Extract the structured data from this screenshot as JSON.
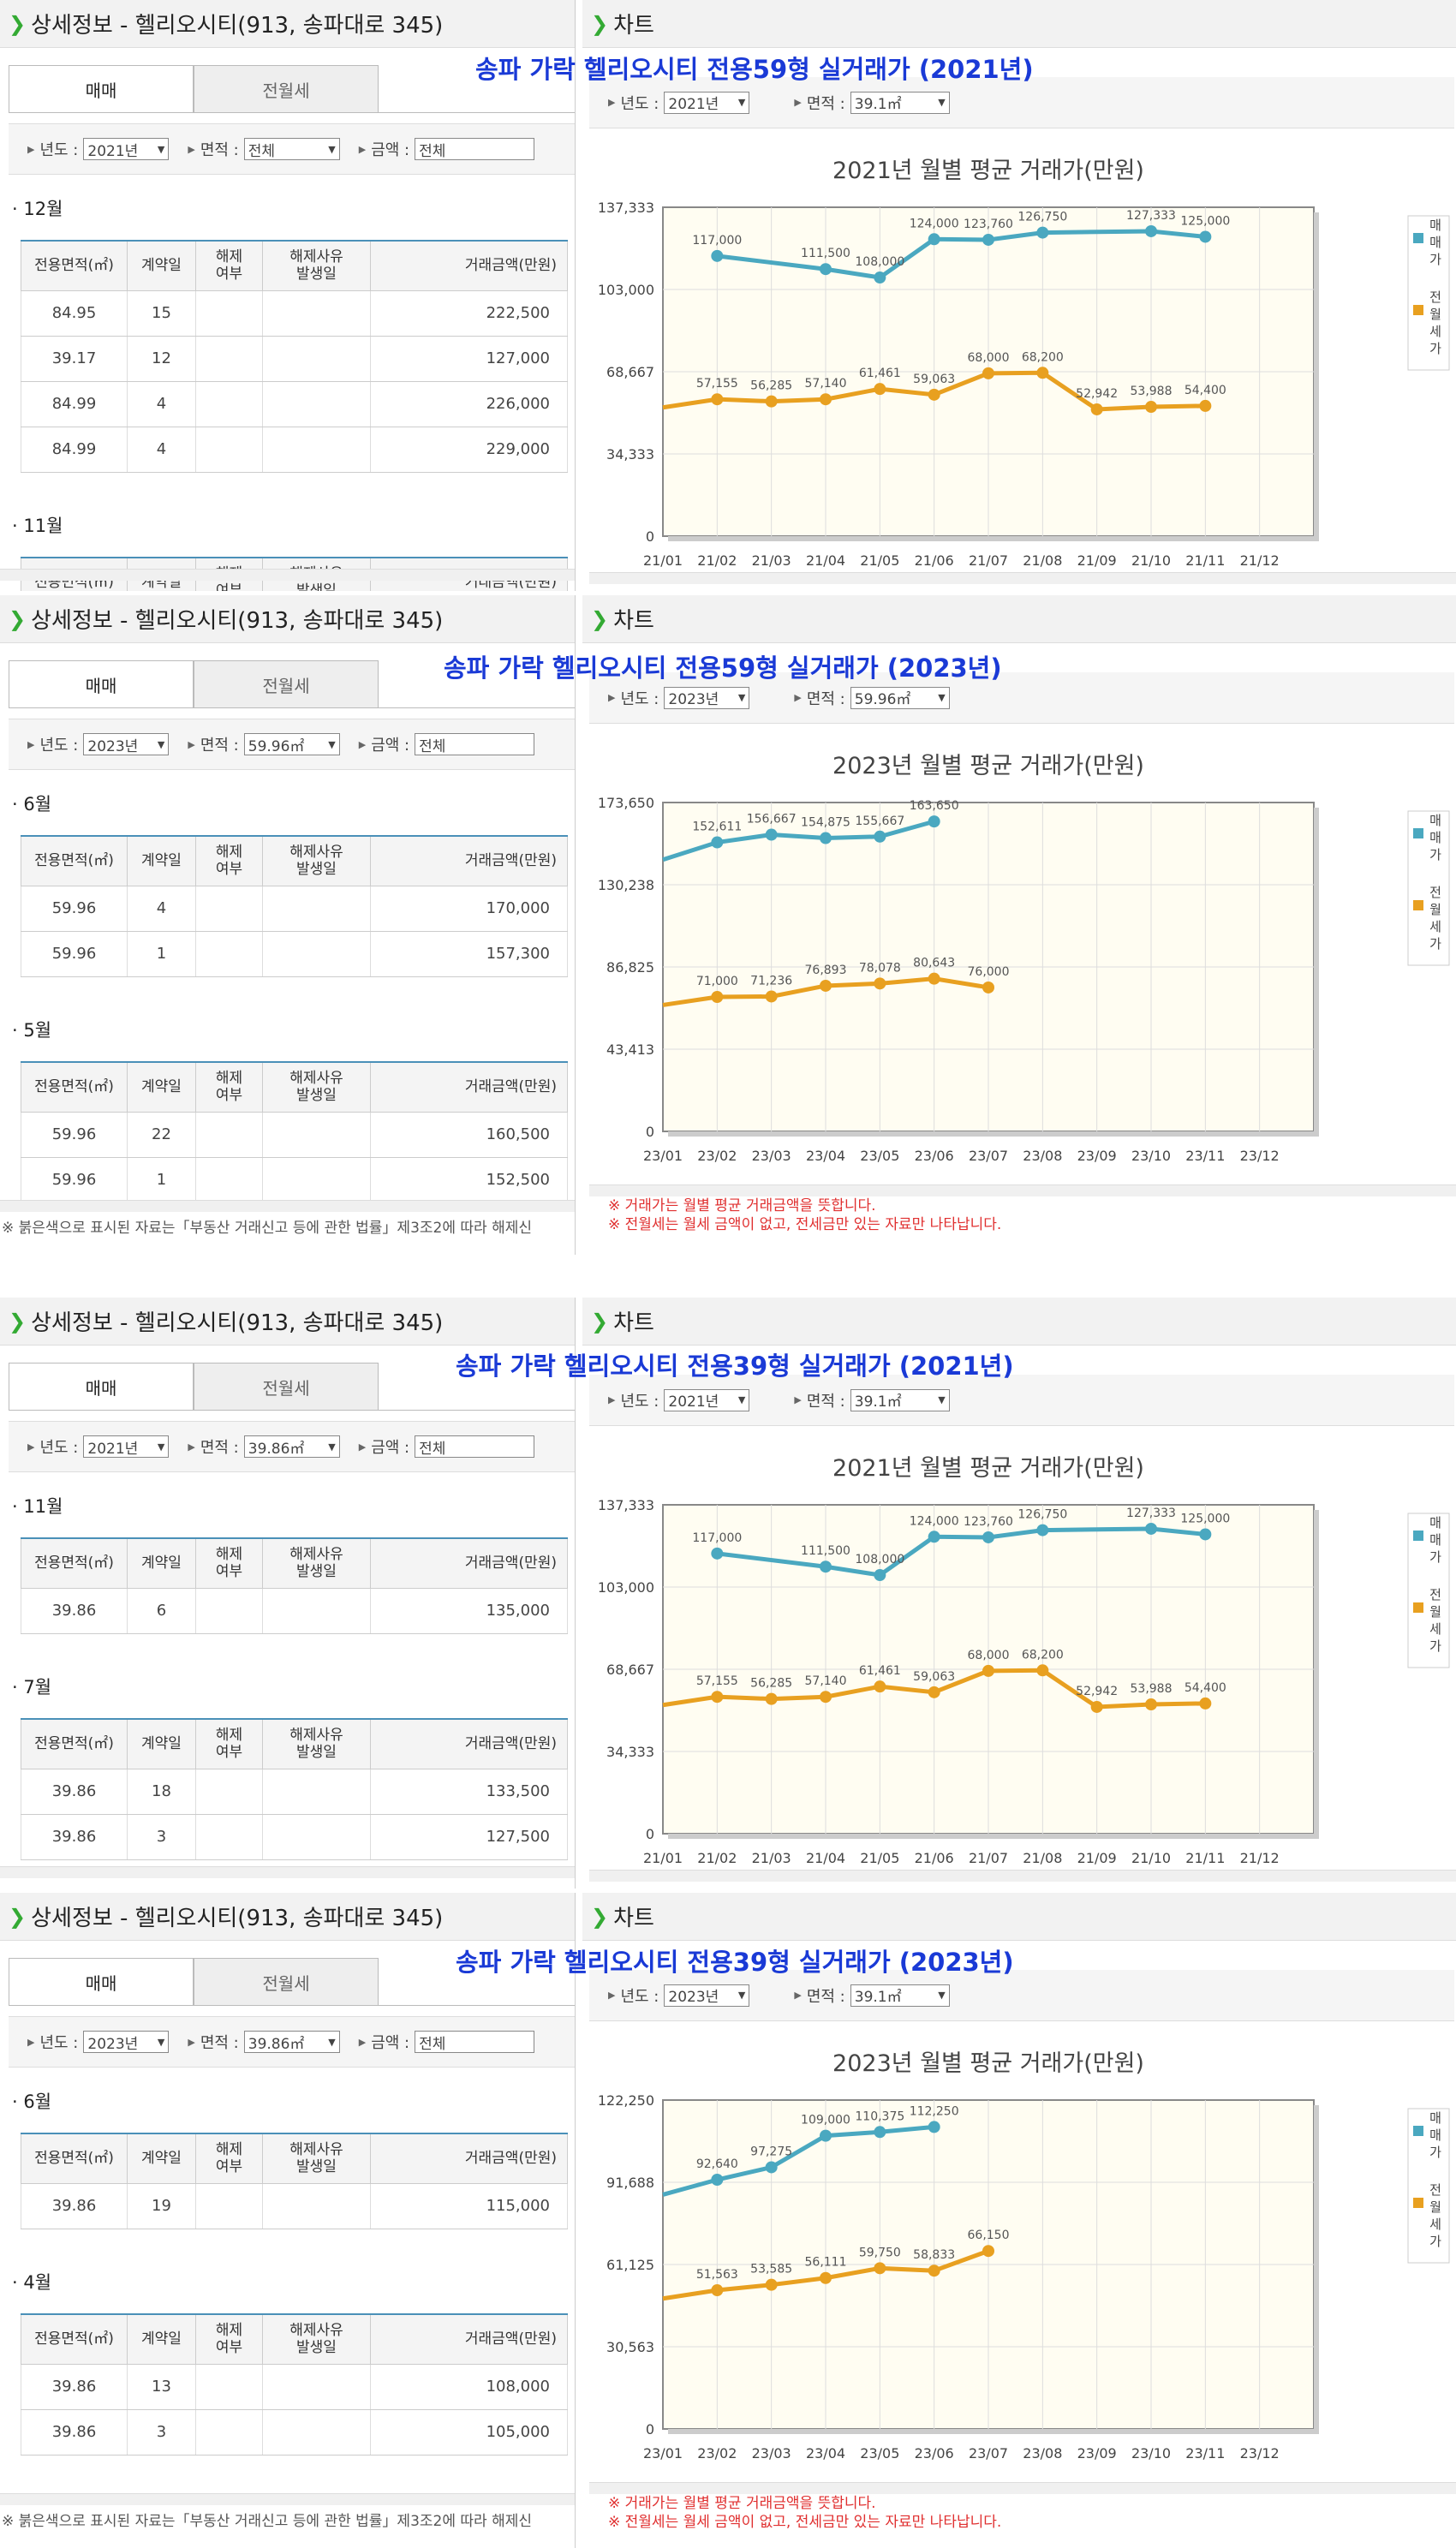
{
  "page_titles": [
    "송파 가락 헬리오시티 전용59형 실거래가 (2021년)",
    "송파 가락 헬리오시티 전용59형 실거래가 (2023년)",
    "송파 가락 헬리오시티 전용39형 실거래가 (2021년)",
    "송파 가락 헬리오시티 전용39형 실거래가 (2023년)"
  ],
  "left_header": "상세정보 - 헬리오시티(913, 송파대로 345)",
  "right_header": "차트",
  "tabs": [
    "매매",
    "전월세"
  ],
  "filter_labels": {
    "year": "년도 :",
    "area": "면적 :",
    "amount": "금액 :"
  },
  "table_headers": [
    "전용면적(㎡)",
    "계약일",
    "해제\n여부",
    "해제사유\n발생일",
    "거래금액(만원)"
  ],
  "footnote": "※ 붉은색으로 표시된 자료는「부동산 거래신고 등에 관한 법률」제3조2에 따라 해제신",
  "chart_notes": [
    "※ 거래가는 월별 평균 거래금액을 뜻합니다.",
    "※ 전월세는 월세 금액이 없고, 전세금만 있는 자료만 나타납니다."
  ],
  "legend": [
    "매매가",
    "전월세가"
  ],
  "colors": {
    "sale": "#4aa8c0",
    "rent": "#e8a020",
    "title": "#1a3ad6",
    "accent": "#4a90b8"
  },
  "panels": [
    {
      "filters": {
        "year": "2021년",
        "area": "전체",
        "amount": "전체",
        "chart_year": "2021년",
        "chart_area": "39.1㎡"
      },
      "groups": [
        {
          "month": "· 12월",
          "rows": [
            [
              "84.95",
              "15",
              "",
              "",
              "222,500"
            ],
            [
              "39.17",
              "12",
              "",
              "",
              "127,000"
            ],
            [
              "84.99",
              "4",
              "",
              "",
              "226,000"
            ],
            [
              "84.99",
              "4",
              "",
              "",
              "229,000"
            ]
          ]
        },
        {
          "month": "· 11월",
          "rows": []
        }
      ],
      "show_footnote": false
    },
    {
      "filters": {
        "year": "2023년",
        "area": "59.96㎡",
        "amount": "전체",
        "chart_year": "2023년",
        "chart_area": "59.96㎡"
      },
      "groups": [
        {
          "month": "· 6월",
          "rows": [
            [
              "59.96",
              "4",
              "",
              "",
              "170,000"
            ],
            [
              "59.96",
              "1",
              "",
              "",
              "157,300"
            ]
          ]
        },
        {
          "month": "· 5월",
          "rows": [
            [
              "59.96",
              "22",
              "",
              "",
              "160,500"
            ],
            [
              "59.96",
              "1",
              "",
              "",
              "152,500"
            ]
          ]
        }
      ],
      "show_footnote": true
    },
    {
      "filters": {
        "year": "2021년",
        "area": "39.86㎡",
        "amount": "전체",
        "chart_year": "2021년",
        "chart_area": "39.1㎡"
      },
      "groups": [
        {
          "month": "· 11월",
          "rows": [
            [
              "39.86",
              "6",
              "",
              "",
              "135,000"
            ]
          ]
        },
        {
          "month": "· 7월",
          "rows": [
            [
              "39.86",
              "18",
              "",
              "",
              "133,500"
            ],
            [
              "39.86",
              "3",
              "",
              "",
              "127,500"
            ]
          ]
        }
      ],
      "show_footnote": false
    },
    {
      "filters": {
        "year": "2023년",
        "area": "39.86㎡",
        "amount": "전체",
        "chart_year": "2023년",
        "chart_area": "39.1㎡"
      },
      "groups": [
        {
          "month": "· 6월",
          "rows": [
            [
              "39.86",
              "19",
              "",
              "",
              "115,000"
            ]
          ]
        },
        {
          "month": "· 4월",
          "rows": [
            [
              "39.86",
              "13",
              "",
              "",
              "108,000"
            ],
            [
              "39.86",
              "3",
              "",
              "",
              "105,000"
            ]
          ]
        }
      ],
      "show_footnote": true
    }
  ],
  "chart_data": [
    {
      "type": "line",
      "title": "2021년 월별 평균 거래가(만원)",
      "x": [
        "21/01",
        "21/02",
        "21/03",
        "21/04",
        "21/05",
        "21/06",
        "21/07",
        "21/08",
        "21/09",
        "21/10",
        "21/11",
        "21/12"
      ],
      "yticks": [
        "0",
        "34,333",
        "68,667",
        "103,000",
        "137,333"
      ],
      "ylim": [
        0,
        137333
      ],
      "series": [
        {
          "name": "매매가",
          "values": [
            null,
            117000,
            null,
            111500,
            108000,
            124000,
            123760,
            126750,
            null,
            127333,
            125000,
            null
          ],
          "labels": [
            "",
            "117,000",
            "",
            "111,500",
            "108,000",
            "124,000",
            "123,760",
            "126,750",
            "",
            "127,333",
            "125,000",
            ""
          ]
        },
        {
          "name": "전월세가",
          "values": [
            null,
            57155,
            56285,
            57140,
            61461,
            59063,
            68000,
            68200,
            52942,
            53988,
            54400,
            null
          ],
          "labels": [
            "",
            "57,155",
            "56,285",
            "57,140",
            "61,461",
            "59,063",
            "68,000",
            "68,200",
            "52,942",
            "53,988",
            "54,400",
            ""
          ]
        }
      ]
    },
    {
      "type": "line",
      "title": "2023년 월별 평균 거래가(만원)",
      "x": [
        "23/01",
        "23/02",
        "23/03",
        "23/04",
        "23/05",
        "23/06",
        "23/07",
        "23/08",
        "23/09",
        "23/10",
        "23/11",
        "23/12"
      ],
      "yticks": [
        "0",
        "43,413",
        "86,825",
        "130,238",
        "173,650"
      ],
      "ylim": [
        0,
        173650
      ],
      "series": [
        {
          "name": "매매가",
          "values": [
            null,
            152611,
            156667,
            154875,
            155667,
            163650,
            null,
            null,
            null,
            null,
            null,
            null
          ],
          "labels": [
            "",
            "152,611",
            "156,667",
            "154,875",
            "155,667",
            "163,650",
            "",
            "",
            "",
            "",
            "",
            ""
          ]
        },
        {
          "name": "전월세가",
          "values": [
            null,
            71000,
            71236,
            76893,
            78078,
            80643,
            76000,
            null,
            null,
            null,
            null,
            null
          ],
          "labels": [
            "",
            "71,000",
            "71,236",
            "76,893",
            "78,078",
            "80,643",
            "76,000",
            "",
            "",
            "",
            "",
            ""
          ]
        }
      ]
    },
    {
      "type": "line",
      "title": "2021년 월별 평균 거래가(만원)",
      "x": [
        "21/01",
        "21/02",
        "21/03",
        "21/04",
        "21/05",
        "21/06",
        "21/07",
        "21/08",
        "21/09",
        "21/10",
        "21/11",
        "21/12"
      ],
      "yticks": [
        "0",
        "34,333",
        "68,667",
        "103,000",
        "137,333"
      ],
      "ylim": [
        0,
        137333
      ],
      "series": [
        {
          "name": "매매가",
          "values": [
            null,
            117000,
            null,
            111500,
            108000,
            124000,
            123760,
            126750,
            null,
            127333,
            125000,
            null
          ],
          "labels": [
            "",
            "117,000",
            "",
            "111,500",
            "108,000",
            "124,000",
            "123,760",
            "126,750",
            "",
            "127,333",
            "125,000",
            ""
          ]
        },
        {
          "name": "전월세가",
          "values": [
            null,
            57155,
            56285,
            57140,
            61461,
            59063,
            68000,
            68200,
            52942,
            53988,
            54400,
            null
          ],
          "labels": [
            "",
            "57,155",
            "56,285",
            "57,140",
            "61,461",
            "59,063",
            "68,000",
            "68,200",
            "52,942",
            "53,988",
            "54,400",
            ""
          ]
        }
      ]
    },
    {
      "type": "line",
      "title": "2023년 월별 평균 거래가(만원)",
      "x": [
        "23/01",
        "23/02",
        "23/03",
        "23/04",
        "23/05",
        "23/06",
        "23/07",
        "23/08",
        "23/09",
        "23/10",
        "23/11",
        "23/12"
      ],
      "yticks": [
        "0",
        "30,563",
        "61,125",
        "91,688",
        "122,250"
      ],
      "ylim": [
        0,
        122250
      ],
      "series": [
        {
          "name": "매매가",
          "values": [
            null,
            92640,
            97275,
            109000,
            110375,
            112250,
            null,
            null,
            null,
            null,
            null,
            null
          ],
          "labels": [
            "",
            "92,640",
            "97,275",
            "109,000",
            "110,375",
            "112,250",
            "",
            "",
            "",
            "",
            "",
            ""
          ]
        },
        {
          "name": "전월세가",
          "values": [
            null,
            51563,
            53585,
            56111,
            59750,
            58833,
            66150,
            null,
            null,
            null,
            null,
            null
          ],
          "labels": [
            "",
            "51,563",
            "53,585",
            "56,111",
            "59,750",
            "58,833",
            "66,150",
            "",
            "",
            "",
            "",
            ""
          ]
        }
      ]
    }
  ]
}
